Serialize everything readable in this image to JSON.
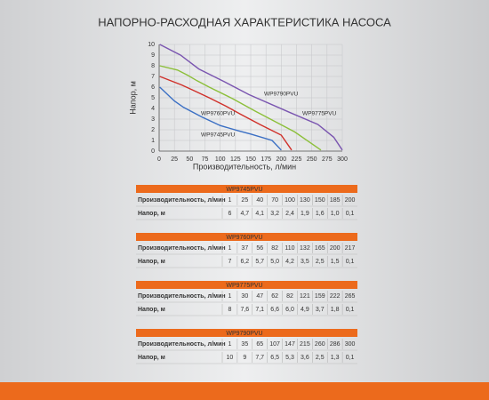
{
  "chart_data": {
    "type": "line",
    "title": "НАПОРНО-РАСХОДНАЯ ХАРАКТЕРИСТИКА НАСОСА",
    "x_label": "Производительность, л/мин",
    "y_label": "Напор, м",
    "xlim": [
      0,
      300
    ],
    "xticks": [
      0,
      25,
      50,
      75,
      100,
      125,
      150,
      175,
      200,
      225,
      250,
      275,
      300
    ],
    "ylim": [
      0,
      10
    ],
    "yticks": [
      0,
      1,
      2,
      3,
      4,
      5,
      6,
      7,
      8,
      9,
      10
    ],
    "grid": true,
    "series": [
      {
        "name": "WP9745PVU",
        "color": "#3a6fc4",
        "x": [
          1,
          25,
          40,
          70,
          100,
          130,
          150,
          185,
          200
        ],
        "values": [
          6,
          4.7,
          4.1,
          3.2,
          2.4,
          1.9,
          1.6,
          1.0,
          0.1
        ]
      },
      {
        "name": "WP9760PVU",
        "color": "#d0302a",
        "x": [
          1,
          37,
          56,
          82,
          110,
          132,
          165,
          200,
          217
        ],
        "values": [
          7,
          6.2,
          5.7,
          5.0,
          4.2,
          3.5,
          2.5,
          1.5,
          0.1
        ]
      },
      {
        "name": "WP9775PVU",
        "color": "#8cbf3a",
        "x": [
          1,
          30,
          47,
          62,
          82,
          121,
          159,
          222,
          265
        ],
        "values": [
          8,
          7.6,
          7.1,
          6.6,
          6.0,
          4.9,
          3.7,
          1.8,
          0.1
        ]
      },
      {
        "name": "WP9790PVU",
        "color": "#7a55b0",
        "x": [
          1,
          35,
          65,
          107,
          147,
          215,
          260,
          286,
          300
        ],
        "values": [
          10,
          9,
          7.7,
          6.5,
          5.3,
          3.6,
          2.5,
          1.3,
          0.1
        ]
      }
    ]
  },
  "tables": [
    {
      "title": "WP9745PVU",
      "rows": [
        [
          "Производительность, л/мин",
          "1",
          "25",
          "40",
          "70",
          "100",
          "130",
          "150",
          "185",
          "200"
        ],
        [
          "Напор, м",
          "6",
          "4,7",
          "4,1",
          "3,2",
          "2,4",
          "1,9",
          "1,6",
          "1,0",
          "0,1"
        ]
      ]
    },
    {
      "title": "WP9760PVU",
      "rows": [
        [
          "Производительность, л/мин",
          "1",
          "37",
          "56",
          "82",
          "110",
          "132",
          "165",
          "200",
          "217"
        ],
        [
          "Напор, м",
          "7",
          "6,2",
          "5,7",
          "5,0",
          "4,2",
          "3,5",
          "2,5",
          "1,5",
          "0,1"
        ]
      ]
    },
    {
      "title": "WP9775PVU",
      "rows": [
        [
          "Производительность, л/мин",
          "1",
          "30",
          "47",
          "62",
          "82",
          "121",
          "159",
          "222",
          "265"
        ],
        [
          "Напор, м",
          "8",
          "7,6",
          "7,1",
          "6,6",
          "6,0",
          "4,9",
          "3,7",
          "1,8",
          "0,1"
        ]
      ]
    },
    {
      "title": "WP9790PVU",
      "rows": [
        [
          "Производительность, л/мин",
          "1",
          "35",
          "65",
          "107",
          "147",
          "215",
          "260",
          "286",
          "300"
        ],
        [
          "Напор, м",
          "10",
          "9",
          "7,7",
          "6,5",
          "5,3",
          "3,6",
          "2,5",
          "1,3",
          "0,1"
        ]
      ]
    }
  ]
}
